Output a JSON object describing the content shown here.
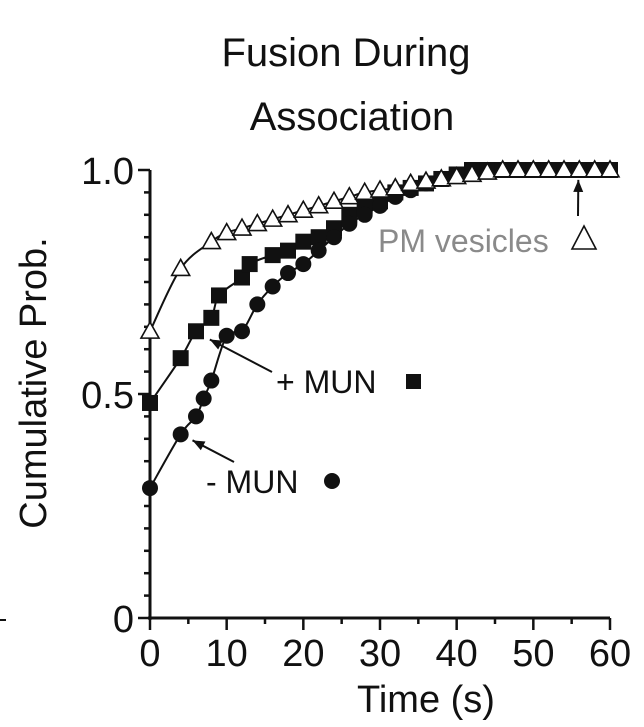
{
  "chart_data": {
    "type": "line",
    "title_lines": [
      "Fusion During",
      "Association"
    ],
    "xlabel": "Time (s)",
    "ylabel": "Cumulative Prob.",
    "xlim": [
      0,
      60
    ],
    "ylim": [
      0,
      1.0
    ],
    "x_ticks": [
      0,
      10,
      20,
      30,
      40,
      50,
      60
    ],
    "x_tick_labels": [
      "0",
      "10",
      "20",
      "30",
      "40",
      "50",
      "60"
    ],
    "y_ticks": [
      0,
      0.5,
      1.0
    ],
    "y_tick_labels": [
      "0",
      "0.5",
      "1.0"
    ],
    "grid": false,
    "colors": {
      "filled": "#111111",
      "open_fill": "#ffffff",
      "gray": "#8a8a8a"
    },
    "series": [
      {
        "name": "PM vesicles",
        "marker": "open-triangle",
        "x": [
          0,
          4,
          8,
          10,
          12,
          14,
          16,
          18,
          20,
          22,
          24,
          26,
          28,
          30,
          32,
          34,
          36,
          38,
          40,
          42,
          44,
          46,
          48,
          50,
          52,
          54,
          56,
          58,
          60
        ],
        "y": [
          0.64,
          0.78,
          0.84,
          0.86,
          0.87,
          0.88,
          0.89,
          0.9,
          0.91,
          0.92,
          0.93,
          0.94,
          0.95,
          0.955,
          0.96,
          0.97,
          0.975,
          0.98,
          0.985,
          0.99,
          0.995,
          1.0,
          1.0,
          1.0,
          1.0,
          1.0,
          1.0,
          1.0,
          1.0
        ]
      },
      {
        "name": "+ MUN",
        "marker": "filled-square",
        "x": [
          0,
          4,
          6,
          8,
          9,
          12,
          13,
          16,
          18,
          20,
          22,
          24,
          26,
          28,
          30,
          32,
          34,
          36,
          38,
          40,
          42,
          44,
          46,
          48,
          50,
          52,
          54,
          56,
          58,
          60
        ],
        "y": [
          0.48,
          0.58,
          0.64,
          0.67,
          0.72,
          0.76,
          0.79,
          0.81,
          0.82,
          0.84,
          0.85,
          0.87,
          0.9,
          0.92,
          0.93,
          0.95,
          0.96,
          0.97,
          0.98,
          0.99,
          1.0,
          1.0,
          1.0,
          1.0,
          1.0,
          1.0,
          1.0,
          1.0,
          1.0,
          1.0
        ]
      },
      {
        "name": "- MUN",
        "marker": "filled-circle",
        "x": [
          0,
          4,
          6,
          7,
          8,
          10,
          12,
          14,
          16,
          18,
          20,
          22,
          24,
          26,
          28,
          30,
          32,
          34,
          36,
          38,
          40,
          42,
          44,
          46,
          48,
          50,
          52,
          54,
          56,
          58,
          60
        ],
        "y": [
          0.29,
          0.41,
          0.45,
          0.49,
          0.53,
          0.63,
          0.64,
          0.7,
          0.74,
          0.77,
          0.79,
          0.82,
          0.85,
          0.88,
          0.9,
          0.92,
          0.94,
          0.955,
          0.97,
          0.98,
          0.99,
          1.0,
          1.0,
          1.0,
          1.0,
          1.0,
          1.0,
          1.0,
          1.0,
          1.0,
          1.0
        ]
      }
    ],
    "annotations": [
      {
        "text": "PM vesicles",
        "series": "PM vesicles",
        "point_x": 56,
        "point_y": 0.96,
        "color": "gray",
        "symbol": "open-triangle"
      },
      {
        "text": "+ MUN",
        "series": "+ MUN",
        "point_x": 6.5,
        "point_y": 0.635,
        "color": "black",
        "symbol": "filled-square"
      },
      {
        "text": "- MUN",
        "series": "- MUN",
        "point_x": 4.5,
        "point_y": 0.41,
        "color": "black",
        "symbol": "filled-circle"
      }
    ]
  }
}
